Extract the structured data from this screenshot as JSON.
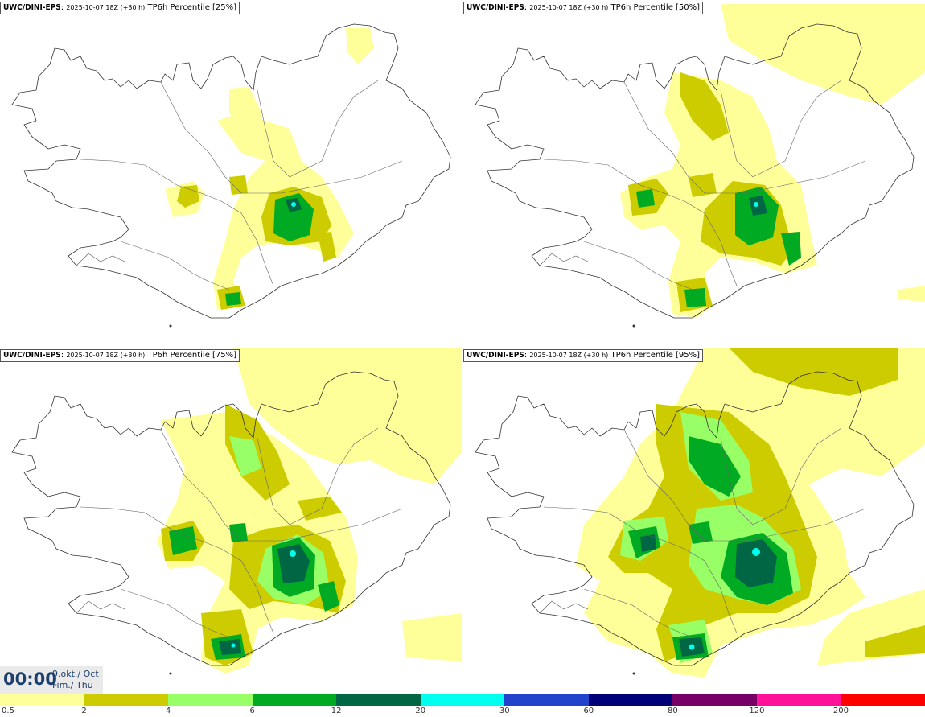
{
  "panels": [
    {
      "model": "UWC/DINI-EPS",
      "run": "2025-10-07 18Z (+30 h)",
      "field": "TP6h Percentile [25%]"
    },
    {
      "model": "UWC/DINI-EPS",
      "run": "2025-10-07 18Z (+30 h)",
      "field": "TP6h Percentile [50%]"
    },
    {
      "model": "UWC/DINI-EPS",
      "run": "2025-10-07 18Z (+30 h)",
      "field": "TP6h Percentile [75%]"
    },
    {
      "model": "UWC/DINI-EPS",
      "run": "2025-10-07 18Z (+30 h)",
      "field": "TP6h Percentile [95%]"
    }
  ],
  "time": {
    "clock": "00:00",
    "date_line1": "9.okt./ Oct",
    "date_line2": "Fim./ Thu"
  },
  "legend": {
    "colors": [
      "#ffff99",
      "#cccc00",
      "#99ff66",
      "#00aa22",
      "#006644",
      "#00ffee",
      "#2244cc",
      "#000077",
      "#770066",
      "#ff1199",
      "#ff0000"
    ],
    "labels": [
      "0.5",
      "2",
      "4",
      "6",
      "12",
      "20",
      "30",
      "60",
      "80",
      "120",
      "200"
    ]
  },
  "colors": {
    "c1": "#ffff99",
    "c2": "#cccc00",
    "c3": "#99ff66",
    "c4": "#00aa22",
    "c5": "#006644",
    "c6": "#00ffee",
    "coast": "#333333"
  }
}
